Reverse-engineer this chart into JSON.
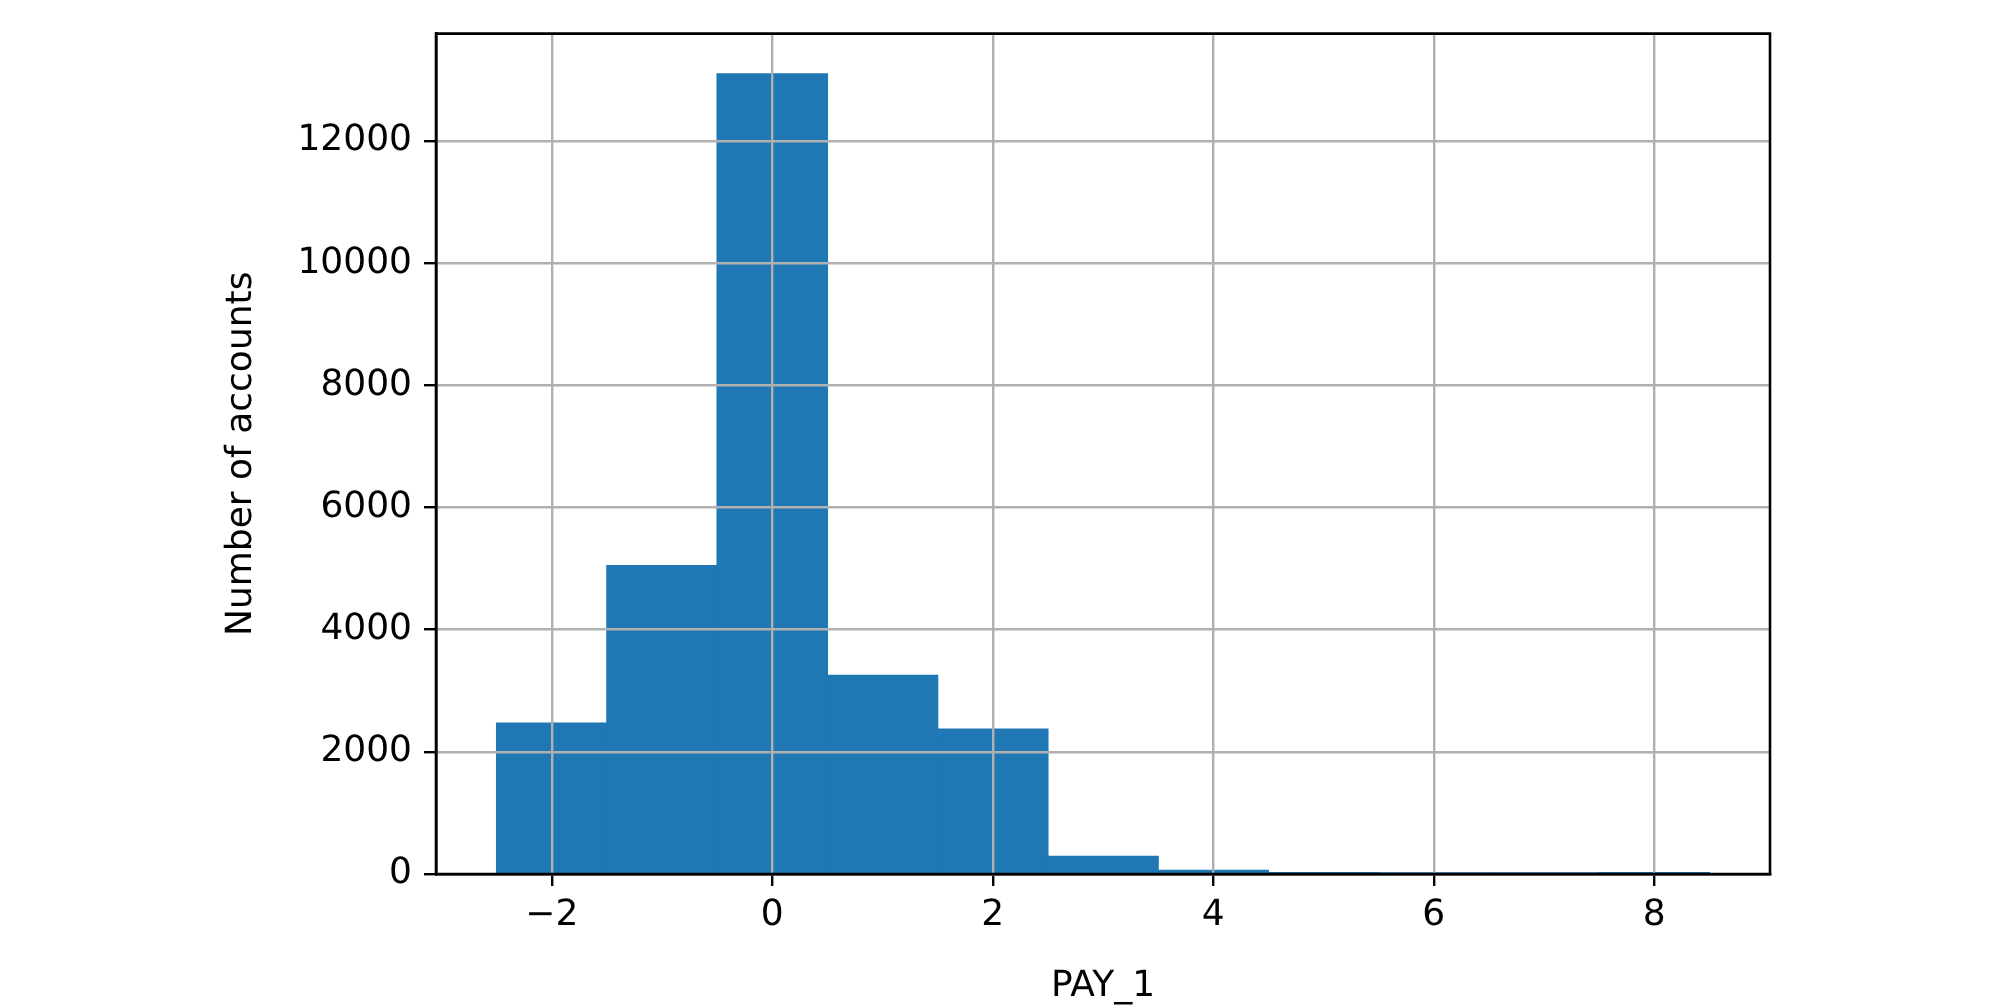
{
  "chart_data": {
    "type": "histogram",
    "xlabel": "PAY_1",
    "ylabel": "Number of accounts",
    "bins": [
      -2.5,
      -1.5,
      -0.5,
      0.5,
      1.5,
      2.5,
      3.5,
      4.5,
      5.5,
      6.5,
      7.5,
      8.5
    ],
    "values": [
      2470,
      5050,
      13100,
      3250,
      2370,
      290,
      60,
      20,
      10,
      10,
      20
    ],
    "color": "#1f77b4",
    "xlim": [
      -3.05,
      9.05
    ],
    "xticks": [
      {
        "value": -2,
        "label": "−2"
      },
      0,
      2,
      4,
      6,
      8
    ],
    "ylim": [
      0,
      13760
    ],
    "yticks": [
      0,
      2000,
      4000,
      6000,
      8000,
      10000,
      12000
    ],
    "grid": true,
    "legend": false
  }
}
